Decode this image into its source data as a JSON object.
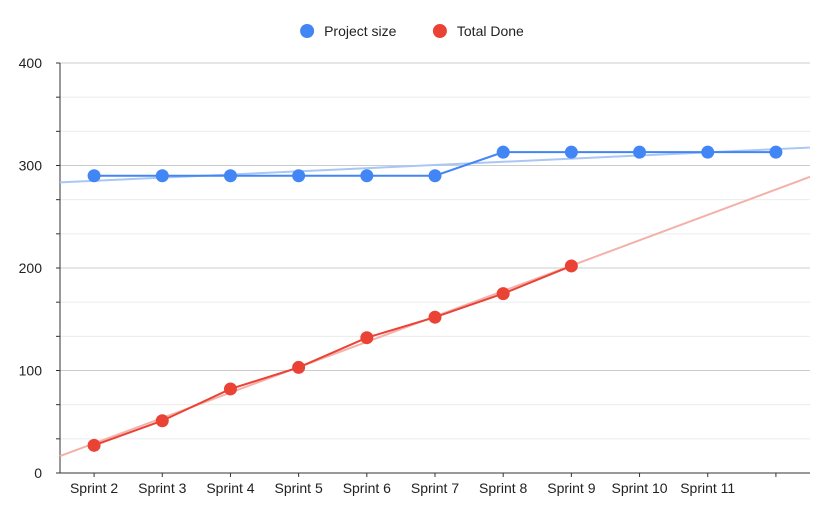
{
  "chart_data": {
    "type": "line",
    "title": "",
    "xlabel": "",
    "ylabel": "",
    "categories": [
      "Sprint 2",
      "Sprint 3",
      "Sprint 4",
      "Sprint 5",
      "Sprint 6",
      "Sprint 7",
      "Sprint 8",
      "Sprint 9",
      "Sprint 10",
      "Sprint 11",
      ""
    ],
    "ylim": [
      0,
      400
    ],
    "yticks": [
      "0",
      "100",
      "200",
      "300",
      "400"
    ],
    "grid": true,
    "legend_position": "top-center",
    "series": [
      {
        "name": "Project size",
        "color": "#4285f4",
        "trend_color": "#a9c7f5",
        "values": [
          290,
          290,
          290,
          290,
          290,
          290,
          313,
          313,
          313,
          313,
          313
        ],
        "trendline": {
          "start": 283.5,
          "end": 317.5
        }
      },
      {
        "name": "Total Done",
        "color": "#ea4335",
        "trend_color": "#f4b1aa",
        "values": [
          27,
          51,
          82,
          103,
          132,
          152,
          175,
          202,
          null,
          null,
          null
        ],
        "trendline": {
          "start": 16.5,
          "end": 289
        }
      }
    ]
  }
}
